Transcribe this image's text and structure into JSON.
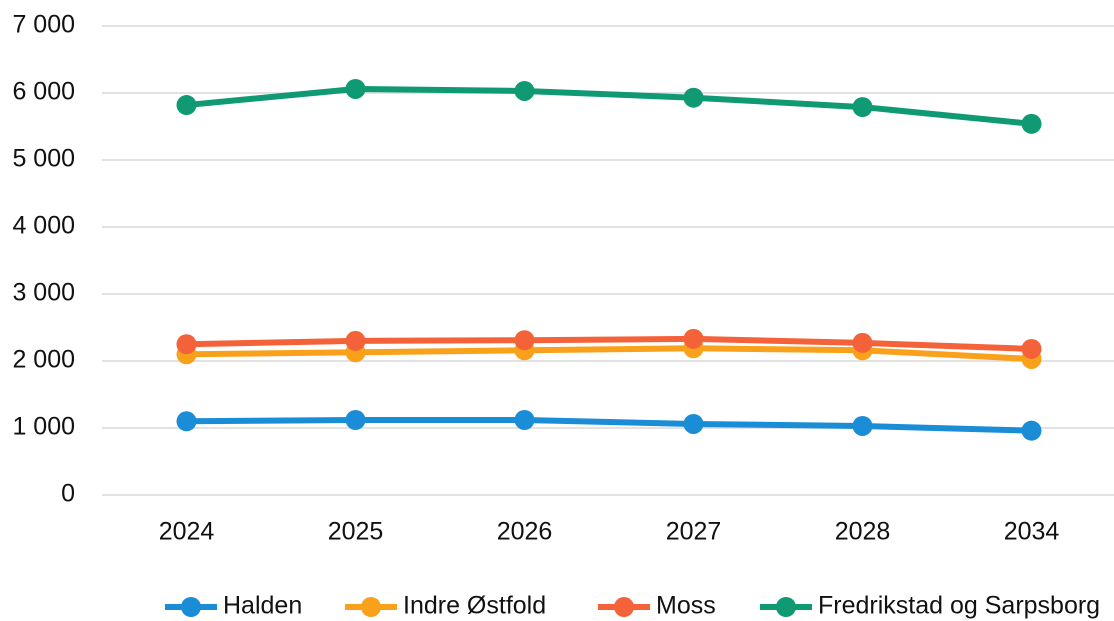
{
  "chart_data": {
    "type": "line",
    "categories": [
      "2024",
      "2025",
      "2026",
      "2027",
      "2028",
      "2034"
    ],
    "series": [
      {
        "name": "Halden",
        "color": "#1a8dd6",
        "values": [
          1100,
          1120,
          1120,
          1060,
          1030,
          960
        ]
      },
      {
        "name": "Indre Østfold",
        "color": "#f9a11b",
        "values": [
          2100,
          2130,
          2160,
          2190,
          2160,
          2030
        ]
      },
      {
        "name": "Moss",
        "color": "#f4623a",
        "values": [
          2250,
          2300,
          2310,
          2330,
          2270,
          2180
        ]
      },
      {
        "name": "Fredrikstad og Sarpsborg",
        "color": "#0f9a73",
        "values": [
          5820,
          6060,
          6030,
          5930,
          5790,
          5540
        ]
      }
    ],
    "ylim": [
      0,
      7000
    ],
    "yticks": [
      0,
      {
        "value": 1000,
        "label": "1 000"
      },
      {
        "value": 2000,
        "label": "2 000"
      },
      {
        "value": 3000,
        "label": "3 000"
      },
      {
        "value": 4000,
        "label": "4 000"
      },
      {
        "value": 5000,
        "label": "5 000"
      },
      {
        "value": 6000,
        "label": "6 000"
      },
      {
        "value": 7000,
        "label": "7 000"
      }
    ],
    "grid": true,
    "legend": "bottom"
  }
}
